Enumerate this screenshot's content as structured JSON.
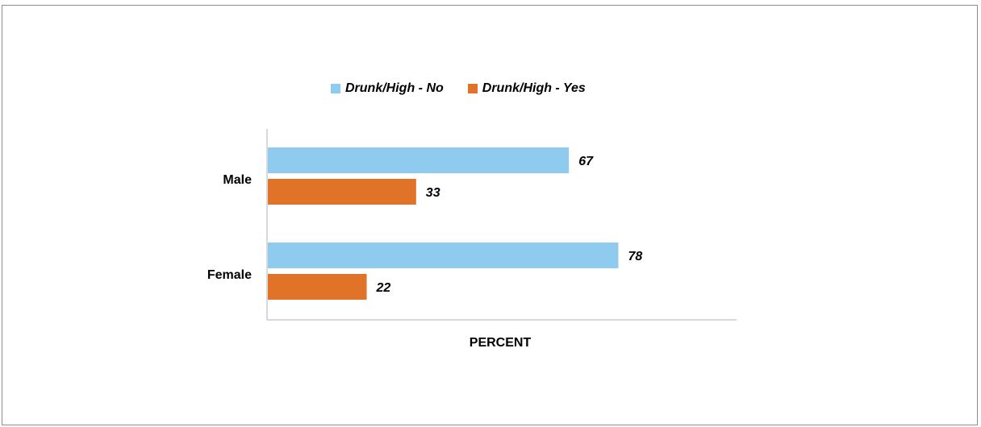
{
  "legend": {
    "items": [
      {
        "label": "Drunk/High - No",
        "color": "#8ecbef"
      },
      {
        "label": "Drunk/High - Yes",
        "color": "#e07328"
      }
    ]
  },
  "chart_data": {
    "type": "bar",
    "orientation": "horizontal",
    "title": "",
    "xlabel": "PERCENT",
    "ylabel": "",
    "categories": [
      "Male",
      "Female"
    ],
    "series": [
      {
        "name": "Drunk/High - No",
        "values": [
          67,
          78
        ],
        "color": "#8ecbef"
      },
      {
        "name": "Drunk/High - Yes",
        "values": [
          33,
          22
        ],
        "color": "#e07328"
      }
    ],
    "xlim": [
      0,
      100
    ],
    "grid": false,
    "legend_position": "top",
    "data_labels": true
  }
}
